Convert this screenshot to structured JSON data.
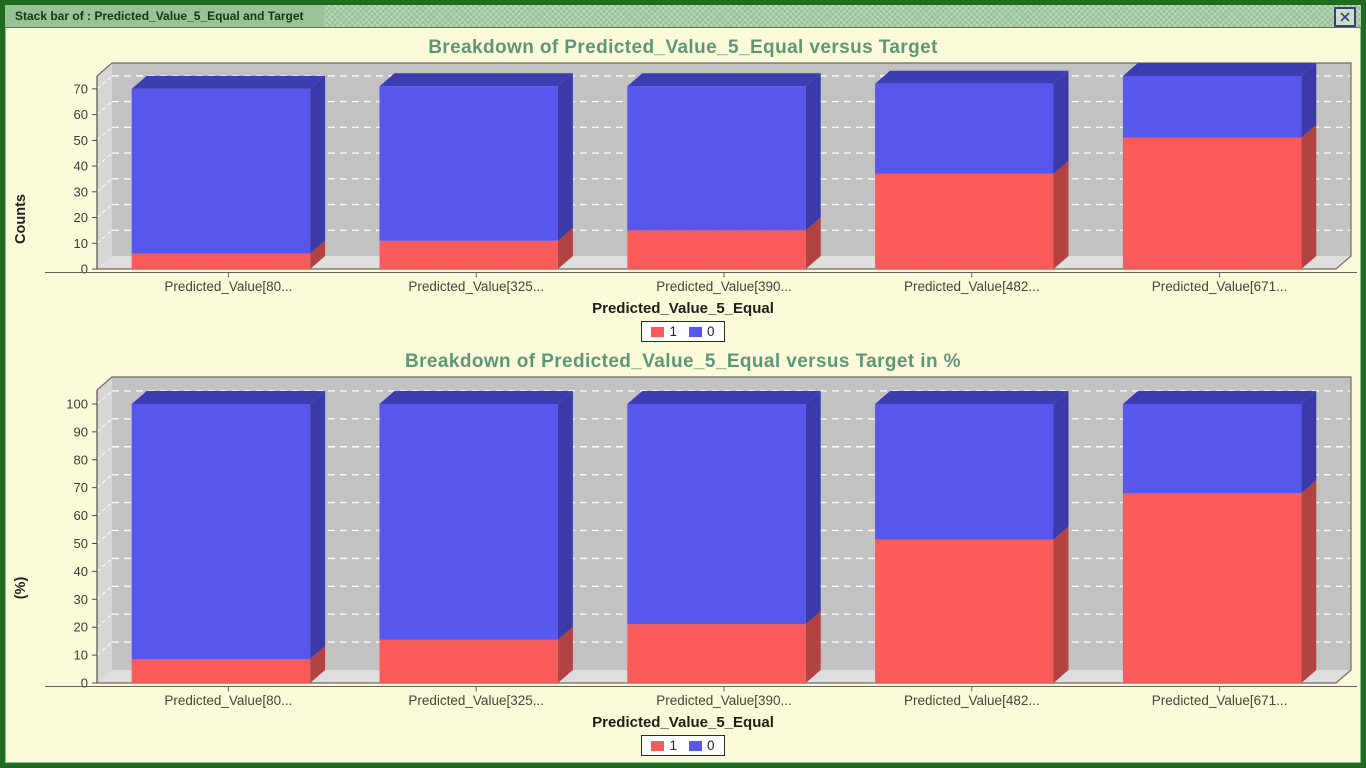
{
  "window": {
    "title": "Stack bar of : Predicted_Value_5_Equal and Target",
    "close_icon": "close-x"
  },
  "colors": {
    "frame_green": "#1F6B1F",
    "titlebar_green": "#98C298",
    "background": "#FBFBDA",
    "chart_title_green": "#5E9679",
    "series_1_red": "#F95B5B",
    "series_0_blue": "#5757EE"
  },
  "chart_data": [
    {
      "type": "bar",
      "stacked": true,
      "title": "Breakdown of Predicted_Value_5_Equal versus Target",
      "xlabel": "Predicted_Value_5_Equal",
      "ylabel": "Counts",
      "categories": [
        "Predicted_Value[80...",
        "Predicted_Value[325...",
        "Predicted_Value[390...",
        "Predicted_Value[482...",
        "Predicted_Value[671..."
      ],
      "series": [
        {
          "name": "1",
          "color": "#F95B5B",
          "side_color": "#B34242",
          "top_color": "#B34242",
          "values": [
            6,
            11,
            15,
            37,
            51
          ]
        },
        {
          "name": "0",
          "color": "#5757EE",
          "side_color": "#3A3AA8",
          "top_color": "#3D3DB2",
          "values": [
            64,
            60,
            56,
            35,
            24
          ]
        }
      ],
      "ylim": [
        0,
        75
      ],
      "ytick_step": 10,
      "ytick_max": 70,
      "grid": true,
      "legend_position": "bottom"
    },
    {
      "type": "bar",
      "stacked": true,
      "title": "Breakdown of Predicted_Value_5_Equal versus Target in %",
      "xlabel": "Predicted_Value_5_Equal",
      "ylabel": "(%)",
      "categories": [
        "Predicted_Value[80...",
        "Predicted_Value[325...",
        "Predicted_Value[390...",
        "Predicted_Value[482...",
        "Predicted_Value[671..."
      ],
      "series": [
        {
          "name": "1",
          "color": "#F95B5B",
          "side_color": "#B34242",
          "top_color": "#B34242",
          "values": [
            8.6,
            15.5,
            21.1,
            51.4,
            68.0
          ]
        },
        {
          "name": "0",
          "color": "#5757EE",
          "side_color": "#3A3AA8",
          "top_color": "#3D3DB2",
          "values": [
            91.4,
            84.5,
            78.9,
            48.6,
            32.0
          ]
        }
      ],
      "ylim": [
        0,
        105
      ],
      "ytick_step": 10,
      "ytick_max": 100,
      "grid": true,
      "legend_position": "bottom"
    }
  ]
}
